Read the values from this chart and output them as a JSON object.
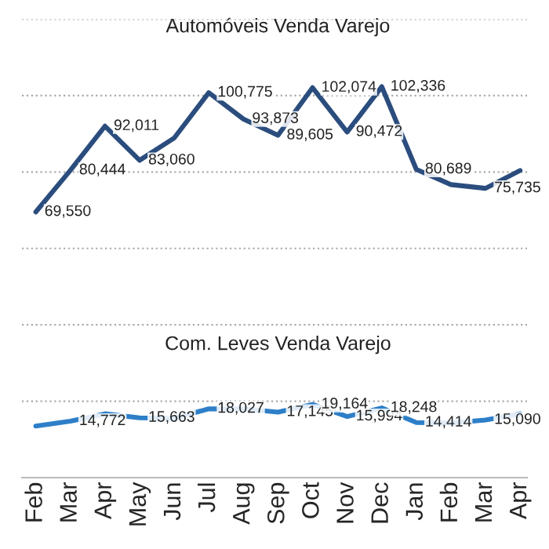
{
  "chart_data": {
    "type": "line",
    "categories": [
      "Feb",
      "Mar",
      "Apr",
      "May",
      "Jun",
      "Jul",
      "Aug",
      "Sep",
      "Oct",
      "Nov",
      "Dec",
      "Jan",
      "Feb",
      "Mar",
      "Apr"
    ],
    "series": [
      {
        "name": "Automóveis Venda Varejo",
        "color": "#2b4d7e",
        "values": [
          69550,
          80444,
          92011,
          83060,
          88900,
          100775,
          93873,
          89605,
          102074,
          90472,
          102336,
          80689,
          76700,
          75735,
          80400
        ],
        "value_labels": [
          "69,550",
          "80,444",
          "92,011",
          "83,060",
          null,
          "100,775",
          "93,873",
          "89,605",
          "102,074",
          "90,472",
          "102,336",
          "80,689",
          null,
          "75,735",
          null
        ]
      },
      {
        "name": "Com. Leves Venda Varejo",
        "color": "#2e7fc8",
        "values": [
          13500,
          14772,
          16700,
          15663,
          15500,
          18027,
          18000,
          17145,
          19164,
          15994,
          18248,
          14414,
          14300,
          15090,
          16700
        ],
        "value_labels": [
          null,
          "14,772",
          null,
          "15,663",
          null,
          "18,027",
          null,
          "17,145",
          "19,164",
          "15,994",
          "18,248",
          "14,414",
          null,
          "15,090",
          null
        ]
      }
    ],
    "ylim": [
      0,
      120000
    ],
    "yticks": [
      {
        "value": 0,
        "label": null
      },
      {
        "value": 20000,
        "label": null
      },
      {
        "value": 40000,
        "label": null
      },
      {
        "value": 60000,
        "label": null
      },
      {
        "value": 80000,
        "label": null
      },
      {
        "value": 100000,
        "label": null
      },
      {
        "value": 120000,
        "label": null
      }
    ],
    "grid": "y",
    "marker": "none",
    "line_style": "solid",
    "legend": false
  }
}
